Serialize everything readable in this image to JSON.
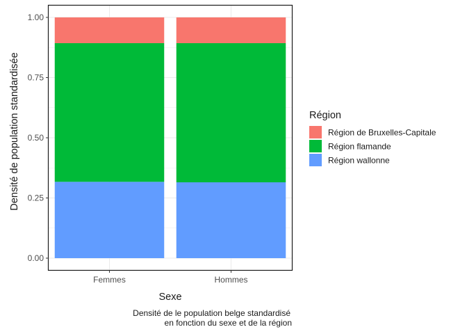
{
  "chart_data": {
    "type": "bar",
    "stacked": true,
    "categories": [
      "Femmes",
      "Hommes"
    ],
    "series": [
      {
        "name": "Région wallonne",
        "color": "#619CFF",
        "values": [
          0.317,
          0.315
        ]
      },
      {
        "name": "Région flamande",
        "color": "#00BA38",
        "values": [
          0.576,
          0.578
        ]
      },
      {
        "name": "Région de Bruxelles-Capitale",
        "color": "#F8766D",
        "values": [
          0.107,
          0.107
        ]
      }
    ],
    "legend_order": [
      "Région de Bruxelles-Capitale",
      "Région flamande",
      "Région wallonne"
    ],
    "xlabel": "Sexe",
    "ylabel": "Densité de population standardisée",
    "ylim": [
      0,
      1
    ],
    "yticks": [
      "0.00",
      "0.25",
      "0.50",
      "0.75",
      "1.00"
    ],
    "legend_title": "Région",
    "legend_position": "right",
    "grid": true,
    "caption_line1": "Densité de le population belge standardisé",
    "caption_line2": "en fonction du sexe et de la région"
  }
}
